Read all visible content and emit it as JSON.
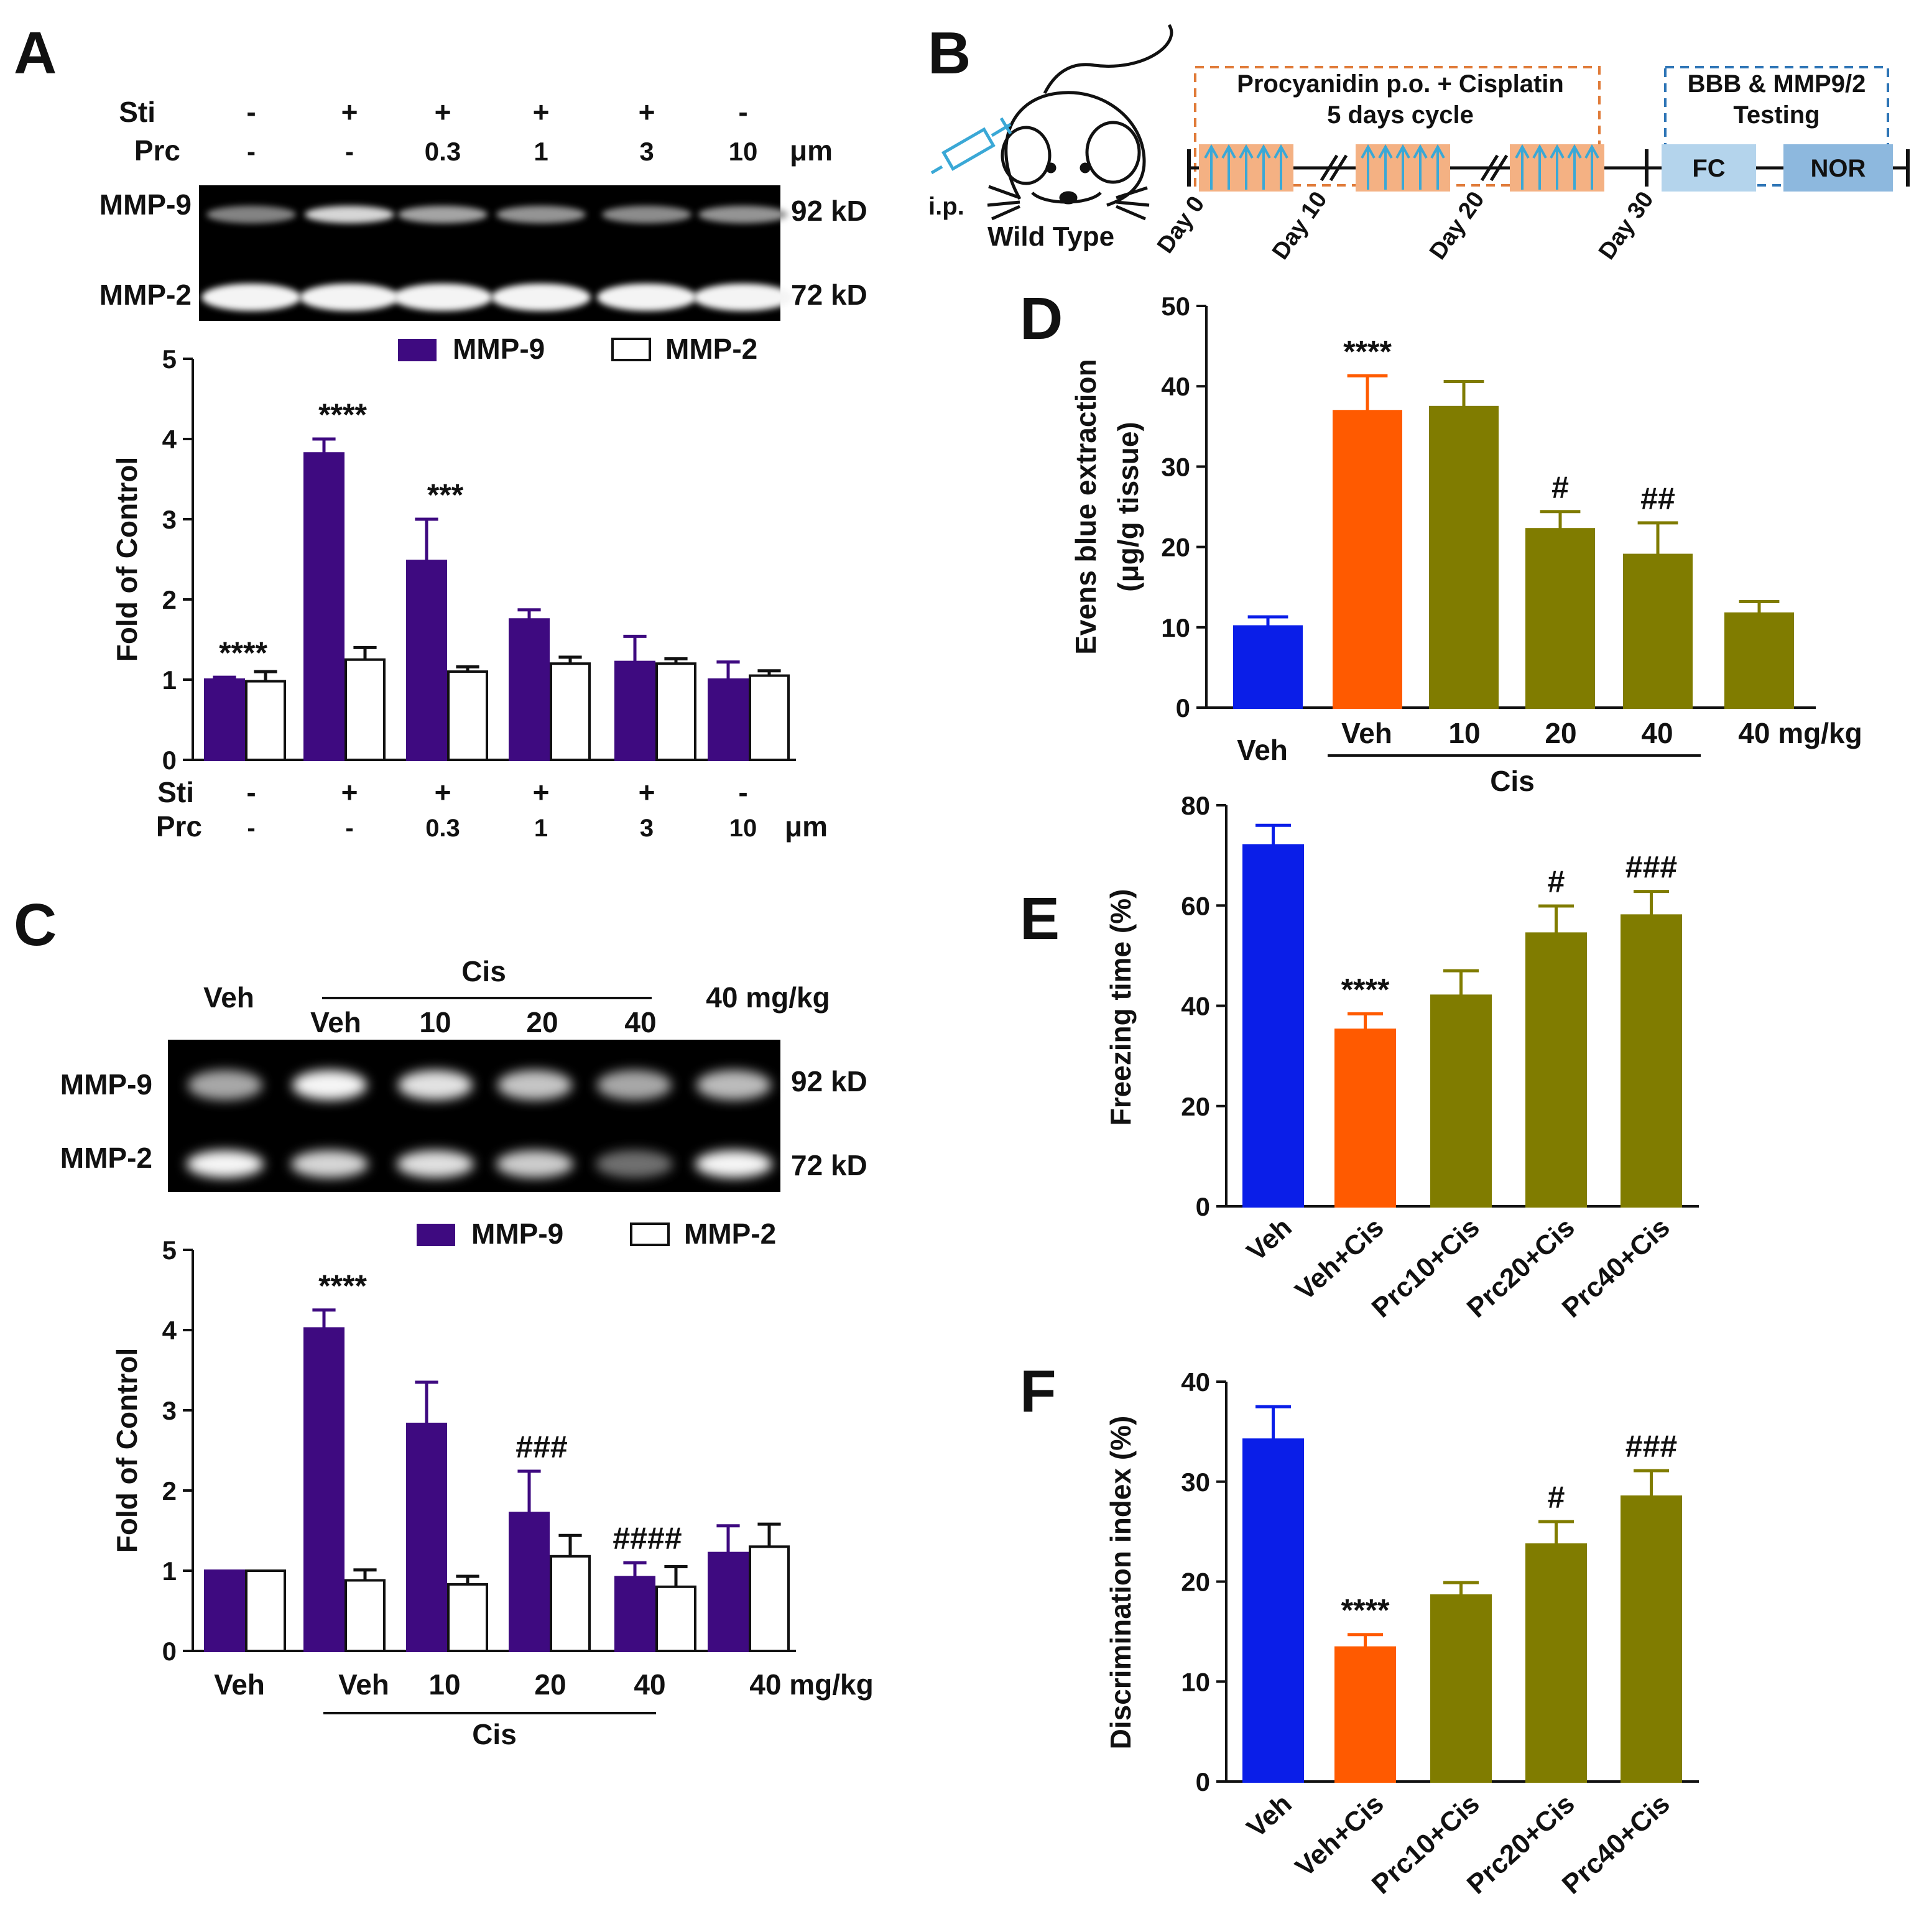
{
  "colors": {
    "mmp9": "#3e0a80",
    "mmp2": "#ffffff",
    "veh": "#0a1ee8",
    "cis": "#ff5a00",
    "prc": "#807c00",
    "protocol_box": "#f4b183",
    "arrow": "#3aa8d6",
    "fc_box": "#b4d4ec",
    "nor_box": "#8db8de",
    "dash_orange": "#e07b39",
    "dash_blue": "#2e75b6"
  },
  "panels": {
    "A": {
      "label": "A"
    },
    "B": {
      "label": "B"
    },
    "C": {
      "label": "C"
    },
    "D": {
      "label": "D"
    },
    "E": {
      "label": "E"
    },
    "F": {
      "label": "F"
    }
  },
  "panelA_blot": {
    "sti_label": "Sti",
    "prc_label": "Prc",
    "sti": [
      "-",
      "+",
      "+",
      "+",
      "+",
      "-"
    ],
    "prc": [
      "-",
      "-",
      "0.3",
      "1",
      "3",
      "10"
    ],
    "unit": "μm",
    "band_top": "MMP-9",
    "band_bottom": "MMP-2",
    "kd_top": "92 kD",
    "kd_bottom": "72 kD",
    "intensity_top": [
      0.25,
      0.75,
      0.45,
      0.35,
      0.3,
      0.35
    ]
  },
  "panelB": {
    "injection_label": "i.p.",
    "mouse_label": "Wild Type",
    "protocol_title_1": "Procyanidin p.o. + Cisplatin",
    "protocol_title_2": "5 days cycle",
    "testing_title_1": "BBB & MMP9/2",
    "testing_title_2": "Testing",
    "fc": "FC",
    "nor": "NOR",
    "days": [
      "Day 0",
      "Day 10",
      "Day 20",
      "Day 30"
    ]
  },
  "panelC_blot": {
    "veh_label": "Veh",
    "cis_label": "Cis",
    "cis_doses": [
      "Veh",
      "10",
      "20",
      "40"
    ],
    "prc_only_label": "40 mg/kg",
    "band_top": "MMP-9",
    "band_bottom": "MMP-2",
    "kd_top": "92 kD",
    "kd_bottom": "72 kD",
    "intensity_top": [
      0.55,
      0.95,
      0.85,
      0.7,
      0.55,
      0.65
    ],
    "intensity_bottom": [
      0.95,
      0.8,
      0.85,
      0.75,
      0.3,
      0.95
    ]
  },
  "chart_data": [
    {
      "id": "A",
      "type": "bar",
      "ylabel": "Fold of Control",
      "ylim": [
        0,
        5
      ],
      "yticks": [
        "0",
        "1",
        "2",
        "3",
        "4",
        "5"
      ],
      "legend": [
        "MMP-9",
        "MMP-2"
      ],
      "x_rows": {
        "Sti": [
          "-",
          "+",
          "+",
          "+",
          "+",
          "-"
        ],
        "Prc": [
          "-",
          "-",
          "0.3",
          "1",
          "3",
          "10"
        ],
        "unit": "μm"
      },
      "series": [
        {
          "name": "MMP-9",
          "values": [
            1.0,
            3.82,
            2.48,
            1.75,
            1.22,
            1.0
          ],
          "errors": [
            0.03,
            0.18,
            0.52,
            0.12,
            0.32,
            0.22
          ]
        },
        {
          "name": "MMP-2",
          "values": [
            0.98,
            1.25,
            1.1,
            1.2,
            1.2,
            1.05
          ],
          "errors": [
            0.12,
            0.15,
            0.06,
            0.08,
            0.06,
            0.06
          ]
        }
      ],
      "annotations": [
        "****",
        "****",
        "***",
        "",
        "",
        ""
      ]
    },
    {
      "id": "C",
      "type": "bar",
      "ylabel": "Fold of Control",
      "ylim": [
        0,
        5
      ],
      "yticks": [
        "0",
        "1",
        "2",
        "3",
        "4",
        "5"
      ],
      "legend": [
        "MMP-9",
        "MMP-2"
      ],
      "categories": [
        "Veh",
        "Veh",
        "10",
        "20",
        "40",
        "40 mg/kg"
      ],
      "group_label": "Cis",
      "series": [
        {
          "name": "MMP-9",
          "values": [
            1.0,
            4.02,
            2.83,
            1.72,
            0.92,
            1.22
          ],
          "errors": [
            0.0,
            0.23,
            0.52,
            0.52,
            0.18,
            0.34
          ]
        },
        {
          "name": "MMP-2",
          "values": [
            1.0,
            0.88,
            0.83,
            1.18,
            0.8,
            1.3
          ],
          "errors": [
            0.0,
            0.13,
            0.1,
            0.26,
            0.25,
            0.28
          ]
        }
      ],
      "annotations": [
        "",
        "****",
        "",
        "###",
        "####",
        ""
      ]
    },
    {
      "id": "D",
      "type": "bar",
      "ylabel_1": "Evens blue extraction",
      "ylabel_2": "(μg/g tissue)",
      "ylim": [
        0,
        50
      ],
      "yticks": [
        "0",
        "10",
        "20",
        "30",
        "40",
        "50"
      ],
      "categories": [
        "Veh",
        "Veh",
        "10",
        "20",
        "40",
        "40 mg/kg"
      ],
      "group_label": "Cis",
      "values": [
        10.1,
        36.9,
        37.4,
        22.2,
        19.0,
        11.7
      ],
      "errors": [
        1.2,
        4.4,
        3.2,
        2.2,
        4.0,
        1.5
      ],
      "annotations": [
        "",
        "****",
        "",
        "#",
        "##",
        ""
      ]
    },
    {
      "id": "E",
      "type": "bar",
      "ylabel": "Freezing time (%)",
      "ylim": [
        0,
        80
      ],
      "yticks": [
        "0",
        "20",
        "40",
        "60",
        "80"
      ],
      "categories": [
        "Veh",
        "Veh+Cis",
        "Prc10+Cis",
        "Prc20+Cis",
        "Prc40+Cis"
      ],
      "values": [
        72.0,
        35.2,
        42.0,
        54.4,
        58.0
      ],
      "errors": [
        4.0,
        3.2,
        5.0,
        5.5,
        4.8
      ],
      "annotations": [
        "",
        "****",
        "",
        "#",
        "###"
      ]
    },
    {
      "id": "F",
      "type": "bar",
      "ylabel": "Discrimination index (%)",
      "ylim": [
        0,
        40
      ],
      "yticks": [
        "0",
        "10",
        "20",
        "30",
        "40"
      ],
      "categories": [
        "Veh",
        "Veh+Cis",
        "Prc10+Cis",
        "Prc20+Cis",
        "Prc40+Cis"
      ],
      "values": [
        34.2,
        13.4,
        18.6,
        23.7,
        28.5
      ],
      "errors": [
        3.3,
        1.3,
        1.3,
        2.3,
        2.6
      ],
      "annotations": [
        "",
        "****",
        "",
        "#",
        "###"
      ]
    }
  ]
}
